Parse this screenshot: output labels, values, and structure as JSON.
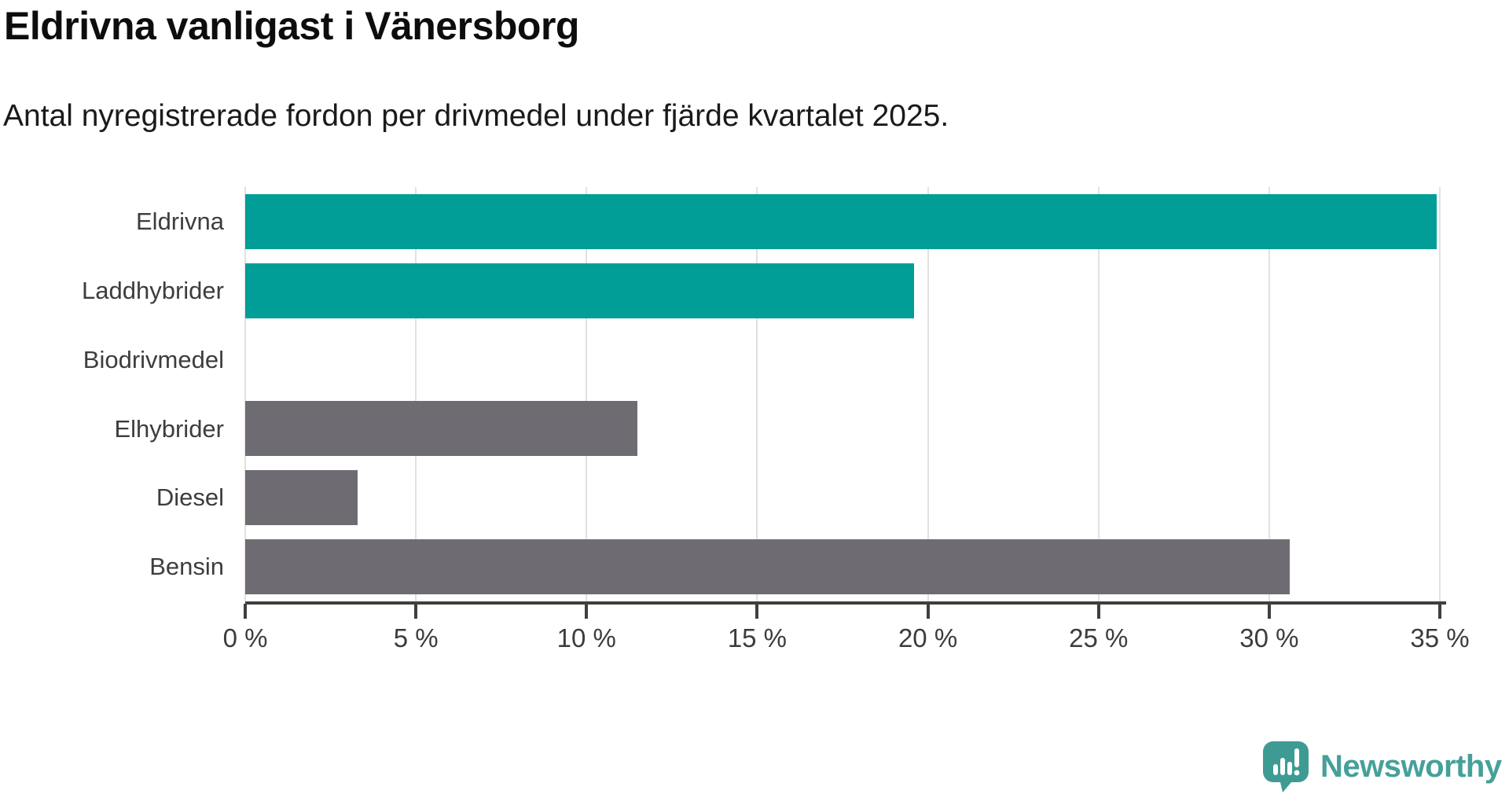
{
  "header": {
    "title": "Eldrivna vanligast i Vänersborg",
    "subtitle": "Antal nyregistrerade fordon per drivmedel under fjärde kvartalet 2025."
  },
  "chart_data": {
    "type": "bar",
    "orientation": "horizontal",
    "title": "Eldrivna vanligast i Vänersborg",
    "subtitle": "Antal nyregistrerade fordon per drivmedel under fjärde kvartalet 2025.",
    "categories": [
      "Eldrivna",
      "Laddhybrider",
      "Biodrivmedel",
      "Elhybrider",
      "Diesel",
      "Bensin"
    ],
    "values": [
      34.9,
      19.6,
      0,
      11.5,
      3.3,
      30.6
    ],
    "unit": "%",
    "xlim": [
      0,
      35
    ],
    "x_tick_step": 5,
    "x_tick_suffix": " %",
    "x_tick_labels": [
      "0 %",
      "5 %",
      "10 %",
      "15 %",
      "20 %",
      "25 %",
      "30 %",
      "35 %"
    ],
    "grid": true,
    "legend": "none",
    "bar_colors": [
      "#009e96",
      "#009e96",
      "#009e96",
      "#6e6c72",
      "#6e6c72",
      "#6e6c72"
    ]
  },
  "colors": {
    "highlight_teal": "#009e96",
    "neutral_gray": "#6e6c72",
    "gridline": "#e1e1e1",
    "axis": "#3f3f3f",
    "text_dark": "#0d0d0d",
    "text_label": "#3d3d3d",
    "brand_teal": "#46a099",
    "brand_icon_teal": "#3e9b94"
  },
  "footer": {
    "brand": "Newsworthy"
  }
}
